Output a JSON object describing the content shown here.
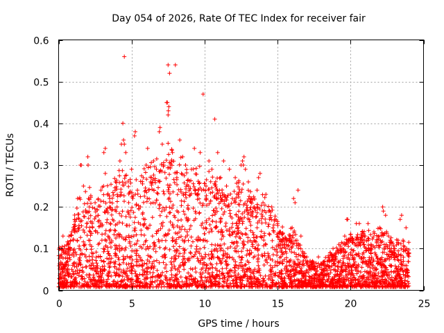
{
  "chart_data": {
    "type": "scatter",
    "title": "Day 054 of 2026, Rate Of TEC Index for receiver fair",
    "xlabel": "GPS time / hours",
    "ylabel": "ROTI / TECUs",
    "xlim": [
      0,
      25
    ],
    "ylim": [
      0,
      0.6
    ],
    "x_ticks": [
      0,
      5,
      10,
      15,
      20,
      25
    ],
    "x_tick_labels": [
      "0",
      "5",
      "10",
      "15",
      "20",
      "25"
    ],
    "y_ticks": [
      0,
      0.1,
      0.2,
      0.3,
      0.4,
      0.5,
      0.6
    ],
    "y_tick_labels": [
      "0",
      "0.1",
      "0.2",
      "0.3",
      "0.4",
      "0.5",
      "0.6"
    ],
    "grid": true,
    "marker": "+",
    "marker_color": "#ff0000",
    "points": [
      [
        0.1,
        0.04
      ],
      [
        0.2,
        0.08
      ],
      [
        0.3,
        0.13
      ],
      [
        0.4,
        0.1
      ],
      [
        0.5,
        0.06
      ],
      [
        0.7,
        0.1
      ],
      [
        0.9,
        0.14
      ],
      [
        1.0,
        0.12
      ],
      [
        1.1,
        0.17
      ],
      [
        1.3,
        0.22
      ],
      [
        1.4,
        0.15
      ],
      [
        1.5,
        0.3
      ],
      [
        1.7,
        0.25
      ],
      [
        1.8,
        0.11
      ],
      [
        2.0,
        0.32
      ],
      [
        2.1,
        0.2
      ],
      [
        2.3,
        0.16
      ],
      [
        2.5,
        0.21
      ],
      [
        2.7,
        0.18
      ],
      [
        2.9,
        0.24
      ],
      [
        3.1,
        0.33
      ],
      [
        3.2,
        0.28
      ],
      [
        3.3,
        0.19
      ],
      [
        3.5,
        0.22
      ],
      [
        3.7,
        0.17
      ],
      [
        3.9,
        0.26
      ],
      [
        4.0,
        0.2
      ],
      [
        4.2,
        0.31
      ],
      [
        4.3,
        0.35
      ],
      [
        4.4,
        0.4
      ],
      [
        4.5,
        0.56
      ],
      [
        4.6,
        0.33
      ],
      [
        4.8,
        0.21
      ],
      [
        5.0,
        0.29
      ],
      [
        5.2,
        0.37
      ],
      [
        5.4,
        0.24
      ],
      [
        5.6,
        0.2
      ],
      [
        5.8,
        0.27
      ],
      [
        6.0,
        0.3
      ],
      [
        6.1,
        0.34
      ],
      [
        6.3,
        0.26
      ],
      [
        6.5,
        0.31
      ],
      [
        6.7,
        0.29
      ],
      [
        6.9,
        0.38
      ],
      [
        7.1,
        0.35
      ],
      [
        7.2,
        0.3
      ],
      [
        7.4,
        0.45
      ],
      [
        7.5,
        0.54
      ],
      [
        7.6,
        0.52
      ],
      [
        7.8,
        0.33
      ],
      [
        8.0,
        0.54
      ],
      [
        8.1,
        0.27
      ],
      [
        8.3,
        0.36
      ],
      [
        8.5,
        0.32
      ],
      [
        8.7,
        0.3
      ],
      [
        8.9,
        0.25
      ],
      [
        9.1,
        0.29
      ],
      [
        9.3,
        0.34
      ],
      [
        9.5,
        0.23
      ],
      [
        9.7,
        0.33
      ],
      [
        9.9,
        0.47
      ],
      [
        10.1,
        0.25
      ],
      [
        10.3,
        0.31
      ],
      [
        10.5,
        0.29
      ],
      [
        10.7,
        0.41
      ],
      [
        10.9,
        0.33
      ],
      [
        11.1,
        0.27
      ],
      [
        11.3,
        0.31
      ],
      [
        11.5,
        0.25
      ],
      [
        11.7,
        0.29
      ],
      [
        11.9,
        0.22
      ],
      [
        12.1,
        0.27
      ],
      [
        12.3,
        0.23
      ],
      [
        12.5,
        0.3
      ],
      [
        12.7,
        0.32
      ],
      [
        12.8,
        0.29
      ],
      [
        13.0,
        0.26
      ],
      [
        13.2,
        0.22
      ],
      [
        13.4,
        0.2
      ],
      [
        13.6,
        0.24
      ],
      [
        13.8,
        0.28
      ],
      [
        14.0,
        0.21
      ],
      [
        14.2,
        0.23
      ],
      [
        14.4,
        0.19
      ],
      [
        14.6,
        0.2
      ],
      [
        14.8,
        0.17
      ],
      [
        15.0,
        0.16
      ],
      [
        15.2,
        0.14
      ],
      [
        15.4,
        0.12
      ],
      [
        15.6,
        0.11
      ],
      [
        15.8,
        0.07
      ],
      [
        16.0,
        0.15
      ],
      [
        16.2,
        0.21
      ],
      [
        16.4,
        0.24
      ],
      [
        16.6,
        0.13
      ],
      [
        16.8,
        0.06
      ],
      [
        17.0,
        0.08
      ],
      [
        17.2,
        0.05
      ],
      [
        17.4,
        0.07
      ],
      [
        17.6,
        0.04
      ],
      [
        17.8,
        0.08
      ],
      [
        18.0,
        0.05
      ],
      [
        18.2,
        0.06
      ],
      [
        18.4,
        0.07
      ],
      [
        18.6,
        0.09
      ],
      [
        18.8,
        0.1
      ],
      [
        19.0,
        0.08
      ],
      [
        19.2,
        0.11
      ],
      [
        19.4,
        0.1
      ],
      [
        19.6,
        0.13
      ],
      [
        19.8,
        0.17
      ],
      [
        20.0,
        0.09
      ],
      [
        20.2,
        0.12
      ],
      [
        20.4,
        0.16
      ],
      [
        20.6,
        0.11
      ],
      [
        20.8,
        0.14
      ],
      [
        21.0,
        0.13
      ],
      [
        21.2,
        0.16
      ],
      [
        21.4,
        0.11
      ],
      [
        21.6,
        0.14
      ],
      [
        21.8,
        0.12
      ],
      [
        22.0,
        0.15
      ],
      [
        22.2,
        0.2
      ],
      [
        22.4,
        0.18
      ],
      [
        22.6,
        0.13
      ],
      [
        22.8,
        0.1
      ],
      [
        23.0,
        0.09
      ],
      [
        23.2,
        0.08
      ],
      [
        23.4,
        0.17
      ],
      [
        23.6,
        0.12
      ],
      [
        23.8,
        0.15
      ],
      [
        24.0,
        0.09
      ],
      [
        7.55,
        0.44
      ],
      [
        7.52,
        0.43
      ],
      [
        7.45,
        0.45
      ],
      [
        7.5,
        0.42
      ],
      [
        4.45,
        0.36
      ],
      [
        4.5,
        0.35
      ],
      [
        6.95,
        0.39
      ],
      [
        3.2,
        0.34
      ],
      [
        2.02,
        0.3
      ],
      [
        1.55,
        0.3
      ],
      [
        5.25,
        0.38
      ],
      [
        9.8,
        0.24
      ],
      [
        12.6,
        0.31
      ],
      [
        12.65,
        0.3
      ],
      [
        13.7,
        0.27
      ],
      [
        16.1,
        0.22
      ],
      [
        22.25,
        0.19
      ],
      [
        23.5,
        0.18
      ],
      [
        19.75,
        0.17
      ],
      [
        20.6,
        0.16
      ]
    ],
    "envelope": [
      [
        0.0,
        0.1
      ],
      [
        0.5,
        0.1
      ],
      [
        0.8,
        0.12
      ],
      [
        1.0,
        0.15
      ],
      [
        1.5,
        0.2
      ],
      [
        2.0,
        0.22
      ],
      [
        2.5,
        0.2
      ],
      [
        3.0,
        0.25
      ],
      [
        3.5,
        0.22
      ],
      [
        4.0,
        0.25
      ],
      [
        4.5,
        0.28
      ],
      [
        5.0,
        0.24
      ],
      [
        5.5,
        0.24
      ],
      [
        6.0,
        0.26
      ],
      [
        6.5,
        0.27
      ],
      [
        7.0,
        0.3
      ],
      [
        7.5,
        0.32
      ],
      [
        8.0,
        0.28
      ],
      [
        8.5,
        0.28
      ],
      [
        9.0,
        0.27
      ],
      [
        9.5,
        0.26
      ],
      [
        10.0,
        0.26
      ],
      [
        10.5,
        0.25
      ],
      [
        11.0,
        0.24
      ],
      [
        11.5,
        0.22
      ],
      [
        12.0,
        0.22
      ],
      [
        12.5,
        0.24
      ],
      [
        13.0,
        0.22
      ],
      [
        13.5,
        0.2
      ],
      [
        14.0,
        0.2
      ],
      [
        14.5,
        0.18
      ],
      [
        15.0,
        0.16
      ],
      [
        15.5,
        0.12
      ],
      [
        16.0,
        0.15
      ],
      [
        16.5,
        0.1
      ],
      [
        17.0,
        0.07
      ],
      [
        17.5,
        0.06
      ],
      [
        18.0,
        0.06
      ],
      [
        18.5,
        0.08
      ],
      [
        19.0,
        0.09
      ],
      [
        19.5,
        0.11
      ],
      [
        20.0,
        0.12
      ],
      [
        20.5,
        0.12
      ],
      [
        21.0,
        0.13
      ],
      [
        21.5,
        0.12
      ],
      [
        22.0,
        0.14
      ],
      [
        22.5,
        0.13
      ],
      [
        23.0,
        0.1
      ],
      [
        23.5,
        0.12
      ],
      [
        24.0,
        0.1
      ]
    ],
    "random_seed": 5412,
    "random_point_count": 3400
  }
}
